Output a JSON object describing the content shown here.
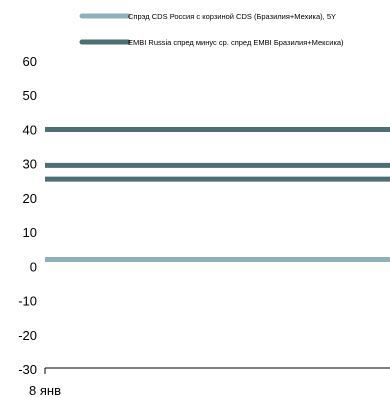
{
  "chart_data": {
    "type": "line",
    "title": "",
    "xlabel": "",
    "ylabel": "",
    "x": [
      "8 янв"
    ],
    "ylim": [
      -30,
      60
    ],
    "yticks": [
      -30,
      -20,
      -10,
      0,
      10,
      20,
      30,
      40,
      50,
      60
    ],
    "grid": false,
    "legend_position": "top",
    "series": [
      {
        "name": "Спрэд CDS Россия с корзиной CDS (Бразилия+Мехика), 5Y",
        "color": "#8fb0bb",
        "values": [
          2
        ]
      },
      {
        "name": "EMBI Russia спред минус ср. спред EMBI Бразилия+Мексика)",
        "color": "#4d6e73",
        "values": [
          25.5
        ]
      }
    ],
    "extra_lines": [
      {
        "color": "#4d6e73",
        "values": [
          29.5
        ]
      },
      {
        "color": "#4d6e73",
        "values": [
          40
        ]
      }
    ]
  }
}
